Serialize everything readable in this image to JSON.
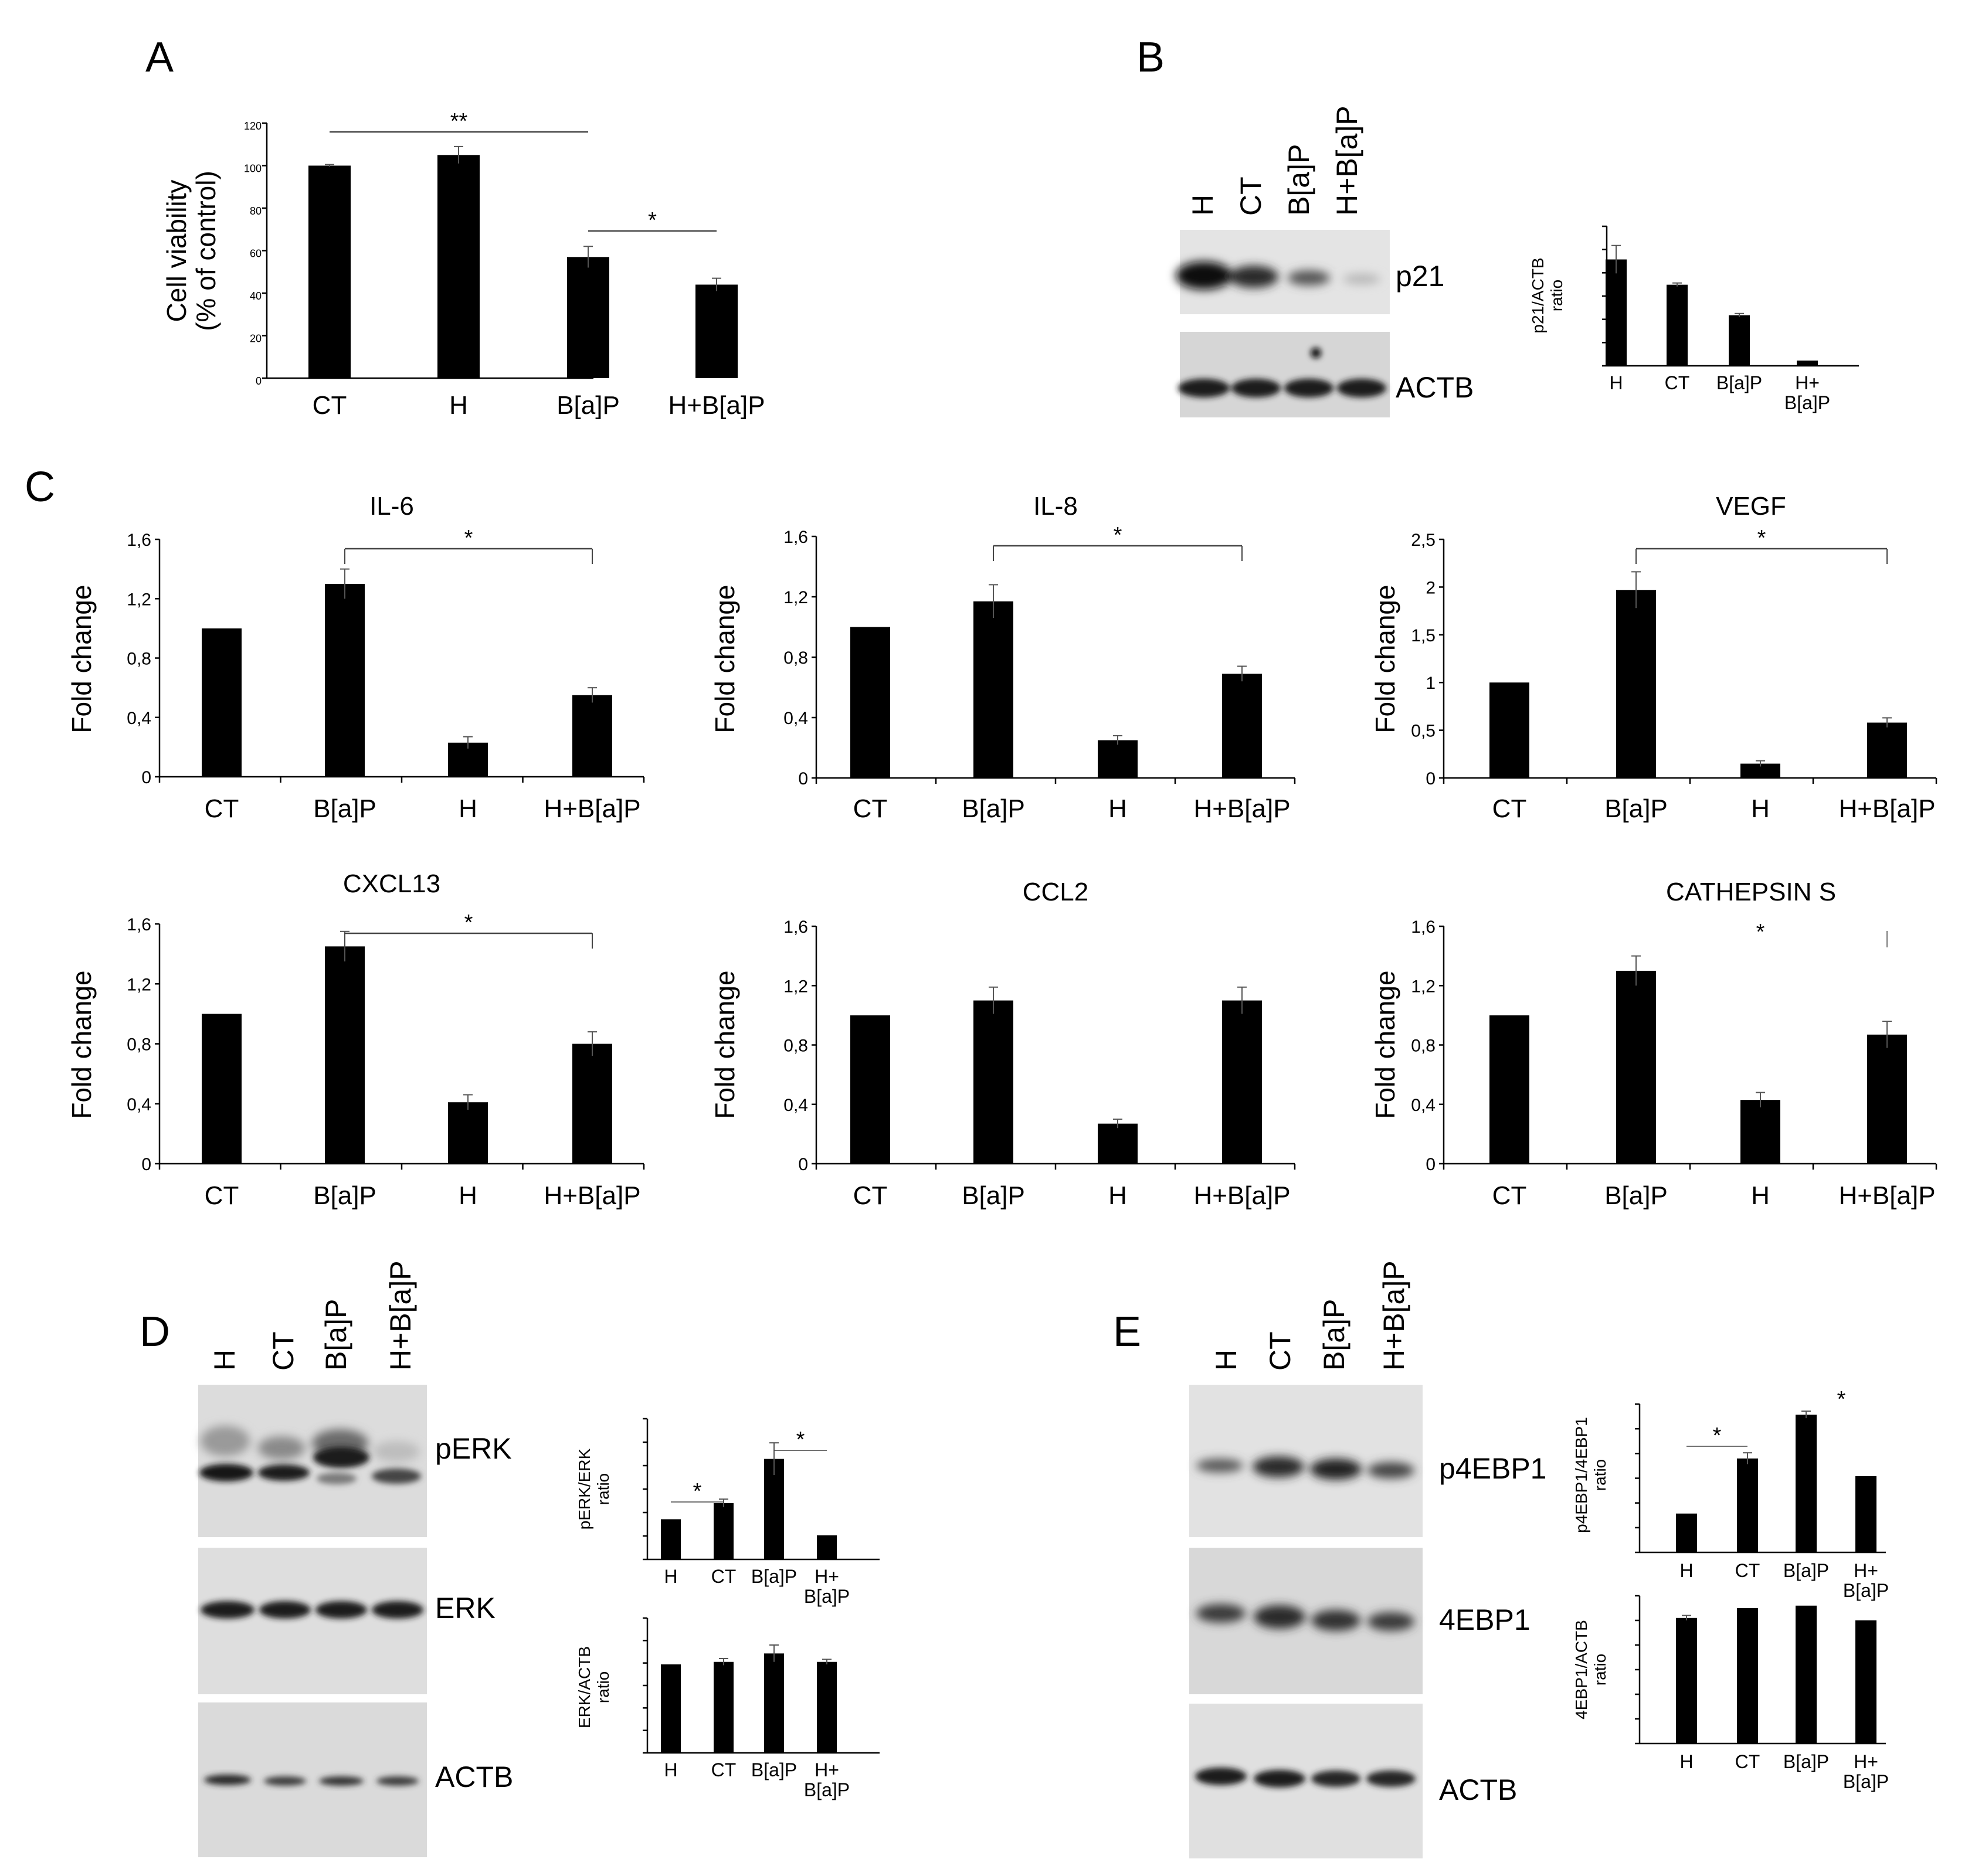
{
  "panels": {
    "A": "A",
    "B": "B",
    "C": "C",
    "D": "D",
    "E": "E"
  },
  "lanes": [
    "H",
    "CT",
    "B[a]P",
    "H+B[a]P"
  ],
  "blots": {
    "B": [
      "p21",
      "ACTB"
    ],
    "D": [
      "pERK",
      "ERK",
      "ACTB"
    ],
    "E": [
      "p4EBP1",
      "4EBP1",
      "ACTB"
    ]
  },
  "chart_data": [
    {
      "id": "A",
      "type": "bar",
      "title": "",
      "ylabel": "Cell viability (% of control)",
      "ylabel_lines": [
        "Cell viability",
        "(% of control)"
      ],
      "categories": [
        "CT",
        "H",
        "B[a]P",
        "H+B[a]P"
      ],
      "values": [
        100,
        105,
        57,
        44
      ],
      "errors": [
        0.5,
        4,
        5,
        3
      ],
      "ylim": [
        0,
        120
      ],
      "yticks": [
        "0",
        "20",
        "40",
        "60",
        "80",
        "100",
        "120"
      ],
      "annotations": [
        {
          "text": "**",
          "from": 0,
          "to": 2
        },
        {
          "text": "*",
          "from": 2,
          "to": 3
        }
      ]
    },
    {
      "id": "B",
      "type": "bar",
      "title": "",
      "ylabel": "p21/ACTB ratio",
      "ylabel_lines": [
        "p21/ACTB",
        "ratio"
      ],
      "categories": [
        "H",
        "CT",
        "B[a]P",
        "H+B[a]P"
      ],
      "category_lines": [
        [
          "H"
        ],
        [
          "CT"
        ],
        [
          "B[a]P"
        ],
        [
          "H+",
          "B[a]P"
        ]
      ],
      "values": [
        1.22,
        0.93,
        0.58,
        0.06
      ],
      "errors": [
        0.16,
        0.02,
        0.02,
        0.0
      ],
      "ylim": [
        0,
        1.6
      ],
      "yticks": []
    },
    {
      "id": "IL-6",
      "type": "bar",
      "title": "IL-6",
      "ylabel": "Fold change",
      "categories": [
        "CT",
        "B[a]P",
        "H",
        "H+B[a]P"
      ],
      "values": [
        1.0,
        1.3,
        0.23,
        0.55
      ],
      "errors": [
        0.0,
        0.1,
        0.04,
        0.05
      ],
      "ylim": [
        0,
        1.6
      ],
      "yticks": [
        "0",
        "0,4",
        "0,8",
        "1,2",
        "1,6"
      ],
      "annotations": [
        {
          "text": "*",
          "from": 1,
          "to": 3
        }
      ]
    },
    {
      "id": "IL-8",
      "type": "bar",
      "title": "IL-8",
      "ylabel": "Fold change",
      "categories": [
        "CT",
        "B[a]P",
        "H",
        "H+B[a]P"
      ],
      "values": [
        1.0,
        1.17,
        0.25,
        0.69
      ],
      "errors": [
        0.0,
        0.11,
        0.03,
        0.05
      ],
      "ylim": [
        0,
        1.6
      ],
      "yticks": [
        "0",
        "0,4",
        "0,8",
        "1,2",
        "1,6"
      ],
      "annotations": [
        {
          "text": "*",
          "from": 1,
          "to": 3
        }
      ]
    },
    {
      "id": "VEGF",
      "type": "bar",
      "title": "VEGF",
      "ylabel": "Fold change",
      "categories": [
        "CT",
        "B[a]P",
        "H",
        "H+B[a]P"
      ],
      "values": [
        1.0,
        1.97,
        0.15,
        0.58
      ],
      "errors": [
        0.0,
        0.19,
        0.03,
        0.05
      ],
      "ylim": [
        0,
        2.5
      ],
      "yticks": [
        "0",
        "0,5",
        "1",
        "1,5",
        "2",
        "2,5"
      ],
      "annotations": [
        {
          "text": "*",
          "from": 1,
          "to": 3
        }
      ]
    },
    {
      "id": "CXCL13",
      "type": "bar",
      "title": "CXCL13",
      "ylabel": "Fold change",
      "categories": [
        "CT",
        "B[a]P",
        "H",
        "H+B[a]P"
      ],
      "values": [
        1.0,
        1.45,
        0.41,
        0.8
      ],
      "errors": [
        0.0,
        0.1,
        0.05,
        0.08
      ],
      "ylim": [
        0,
        1.6
      ],
      "yticks": [
        "0",
        "0,4",
        "0,8",
        "1,2",
        "1,6"
      ],
      "annotations": [
        {
          "text": "*",
          "from": 1,
          "to": 3
        }
      ]
    },
    {
      "id": "CCL2",
      "type": "bar",
      "title": "CCL2",
      "ylabel": "Fold change",
      "categories": [
        "CT",
        "B[a]P",
        "H",
        "H+B[a]P"
      ],
      "values": [
        1.0,
        1.1,
        0.27,
        1.1
      ],
      "errors": [
        0.0,
        0.09,
        0.03,
        0.09
      ],
      "ylim": [
        0,
        1.6
      ],
      "yticks": [
        "0",
        "0,4",
        "0,8",
        "1,2",
        "1,6"
      ]
    },
    {
      "id": "CATHEPSIN S",
      "type": "bar",
      "title": "CATHEPSIN S",
      "ylabel": "Fold change",
      "categories": [
        "CT",
        "B[a]P",
        "H",
        "H+B[a]P"
      ],
      "values": [
        1.0,
        1.3,
        0.43,
        0.87
      ],
      "errors": [
        0.0,
        0.1,
        0.05,
        0.09
      ],
      "ylim": [
        0,
        1.6
      ],
      "yticks": [
        "0",
        "0,4",
        "0,8",
        "1,2",
        "1,6"
      ],
      "annotations": [
        {
          "text": "*",
          "from": 2,
          "to": 3
        }
      ]
    },
    {
      "id": "D-top",
      "type": "bar",
      "title": "",
      "ylabel": "pERK/ERK ratio",
      "ylabel_lines": [
        "pERK/ERK",
        "ratio"
      ],
      "categories": [
        "H",
        "CT",
        "B[a]P",
        "H+B[a]P"
      ],
      "category_lines": [
        [
          "H"
        ],
        [
          "CT"
        ],
        [
          "B[a]P"
        ],
        [
          "H+",
          "B[a]P"
        ]
      ],
      "values": [
        1.0,
        1.4,
        2.5,
        0.6
      ],
      "errors": [
        0.0,
        0.1,
        0.4,
        0.0
      ],
      "ylim": [
        0,
        3.5
      ],
      "yticks": [],
      "annotations": [
        {
          "text": "*",
          "from": 0,
          "to": 1
        },
        {
          "text": "*",
          "from": 2,
          "to": 3
        }
      ]
    },
    {
      "id": "D-bottom",
      "type": "bar",
      "title": "",
      "ylabel": "ERK/ACTB ratio",
      "ylabel_lines": [
        "ERK/ACTB",
        "ratio"
      ],
      "categories": [
        "H",
        "CT",
        "B[a]P",
        "H+B[a]P"
      ],
      "category_lines": [
        [
          "H"
        ],
        [
          "CT"
        ],
        [
          "B[a]P"
        ],
        [
          "H+",
          "B[a]P"
        ]
      ],
      "values": [
        1.05,
        1.08,
        1.18,
        1.08
      ],
      "errors": [
        0.0,
        0.04,
        0.1,
        0.03
      ],
      "ylim": [
        0,
        1.6
      ],
      "yticks": []
    },
    {
      "id": "E-top",
      "type": "bar",
      "title": "",
      "ylabel": "p4EBP1/4EBP1 ratio",
      "ylabel_lines": [
        "p4EBP1/4EBP1",
        "ratio"
      ],
      "categories": [
        "H",
        "CT",
        "B[a]P",
        "H+B[a]P"
      ],
      "category_lines": [
        [
          "H"
        ],
        [
          "CT"
        ],
        [
          "B[a]P"
        ],
        [
          "H+",
          "B[a]P"
        ]
      ],
      "values": [
        0.55,
        1.33,
        1.95,
        1.08
      ],
      "errors": [
        0.0,
        0.08,
        0.05,
        0.0
      ],
      "ylim": [
        0,
        2.1
      ],
      "yticks": [],
      "annotations": [
        {
          "text": "*",
          "from": 0,
          "to": 1
        },
        {
          "text": "*",
          "from": 2,
          "to": 2
        }
      ]
    },
    {
      "id": "E-bottom",
      "type": "bar",
      "title": "",
      "ylabel": "4EBP1/ACTB ratio",
      "ylabel_lines": [
        "4EBP1/ACTB",
        "ratio"
      ],
      "categories": [
        "H",
        "CT",
        "B[a]P",
        "H+B[a]P"
      ],
      "category_lines": [
        [
          "H"
        ],
        [
          "CT"
        ],
        [
          "B[a]P"
        ],
        [
          "H+",
          "B[a]P"
        ]
      ],
      "values": [
        1.02,
        1.1,
        1.12,
        1.0
      ],
      "errors": [
        0.02,
        0.0,
        0.0,
        0.0
      ],
      "ylim": [
        0,
        1.2
      ],
      "yticks": []
    }
  ]
}
